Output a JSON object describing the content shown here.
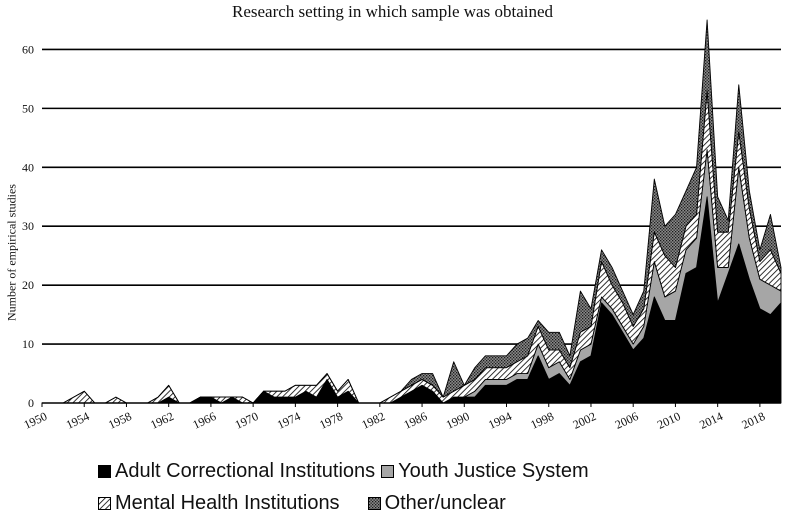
{
  "chart_data": {
    "type": "area",
    "stacked": true,
    "title": "Research setting in which sample was obtained",
    "ylabel": "Number of empirical studies",
    "xlabel": "",
    "x_start": 1950,
    "x_end": 2020,
    "ylim": [
      0,
      65
    ],
    "yticks": [
      0,
      10,
      20,
      30,
      40,
      50,
      60
    ],
    "x_tick_labels": [
      "1950",
      "1954",
      "1958",
      "1962",
      "1966",
      "1970",
      "1974",
      "1978",
      "1982",
      "1986",
      "1990",
      "1994",
      "1998",
      "2002",
      "2006",
      "2010",
      "2014",
      "2018"
    ],
    "grid": "horizontal",
    "legend_position": "bottom",
    "series": [
      {
        "name": "Adult Correctional Institutions",
        "color": "#000000",
        "fill": "solid",
        "values": [
          0,
          0,
          0,
          0,
          0,
          0,
          0,
          0,
          0,
          0,
          0,
          0,
          1,
          0,
          0,
          1,
          1,
          0,
          1,
          0,
          0,
          2,
          1,
          1,
          1,
          2,
          1,
          4,
          1,
          2,
          0,
          0,
          0,
          0,
          1,
          2,
          3,
          2,
          0,
          1,
          1,
          1,
          3,
          3,
          3,
          4,
          4,
          8,
          4,
          5,
          3,
          7,
          8,
          17,
          15,
          12,
          9,
          11,
          18,
          14,
          14,
          22,
          23,
          35,
          17,
          22,
          27,
          21,
          16,
          15,
          17
        ]
      },
      {
        "name": "Youth Justice System",
        "color": "#a6a6a6",
        "fill": "solid",
        "values": [
          0,
          0,
          0,
          0,
          0,
          0,
          0,
          0,
          0,
          0,
          0,
          0,
          0,
          0,
          0,
          0,
          0,
          0,
          0,
          0,
          0,
          0,
          0,
          0,
          0,
          0,
          0,
          0,
          0,
          0,
          0,
          0,
          0,
          0,
          0,
          0,
          0,
          0,
          0,
          0,
          0,
          1,
          1,
          1,
          1,
          1,
          1,
          2,
          2,
          2,
          1,
          2,
          2,
          1,
          1,
          1,
          1,
          2,
          6,
          4,
          5,
          4,
          5,
          8,
          6,
          1,
          13,
          7,
          5,
          5,
          2
        ]
      },
      {
        "name": "Mental Health Institutions",
        "color": "#000000",
        "fill": "diagonal",
        "values": [
          0,
          0,
          0,
          1,
          2,
          0,
          0,
          1,
          0,
          0,
          0,
          1,
          2,
          0,
          0,
          0,
          0,
          1,
          0,
          1,
          0,
          0,
          1,
          1,
          2,
          1,
          2,
          1,
          1,
          2,
          0,
          0,
          0,
          1,
          1,
          1,
          1,
          1,
          1,
          1,
          2,
          2,
          2,
          2,
          2,
          2,
          3,
          3,
          3,
          2,
          2,
          3,
          3,
          6,
          4,
          4,
          3,
          3,
          5,
          7,
          4,
          4,
          4,
          10,
          6,
          6,
          6,
          5,
          3,
          6,
          3
        ]
      },
      {
        "name": "Other/unclear",
        "color": "#707070",
        "fill": "dotted",
        "values": [
          0,
          0,
          0,
          0,
          0,
          0,
          0,
          0,
          0,
          0,
          0,
          0,
          0,
          0,
          0,
          0,
          0,
          0,
          0,
          0,
          0,
          0,
          0,
          0,
          0,
          0,
          0,
          0,
          0,
          0,
          0,
          0,
          0,
          0,
          0,
          1,
          1,
          2,
          0,
          5,
          0,
          2,
          2,
          2,
          2,
          3,
          3,
          1,
          3,
          3,
          2,
          7,
          3,
          2,
          3,
          2,
          2,
          3,
          9,
          5,
          9,
          6,
          8,
          12,
          6,
          2,
          8,
          3,
          2,
          6,
          1
        ]
      }
    ]
  }
}
